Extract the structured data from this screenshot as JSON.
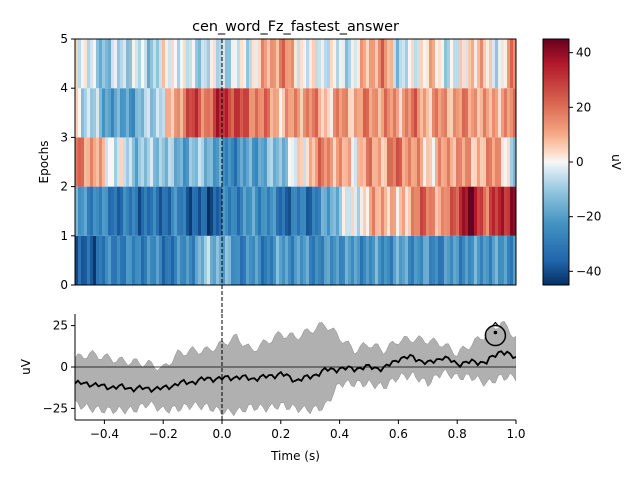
{
  "chart_data": [
    {
      "type": "heatmap",
      "title": "cen_word_Fz_fastest_answer",
      "xlabel": "",
      "ylabel": "Epochs",
      "xlim": [
        -0.5,
        1.0
      ],
      "ylim": [
        0,
        5
      ],
      "yticks": [
        "0",
        "1",
        "2",
        "3",
        "4",
        "5"
      ],
      "event_line_x": 0.0,
      "colorscale": "RdBu_r",
      "rows": [
        {
          "name": "epoch 1",
          "y": [
            0,
            1
          ],
          "t": [
            -0.5,
            -0.45,
            -0.4,
            -0.35,
            -0.3,
            -0.25,
            -0.2,
            -0.15,
            -0.1,
            -0.05,
            0.0,
            0.05,
            0.1,
            0.15,
            0.2,
            0.25,
            0.3,
            0.35,
            0.4,
            0.45,
            0.5,
            0.55,
            0.6,
            0.65,
            0.7,
            0.75,
            0.8,
            0.85,
            0.9,
            0.95,
            1.0
          ],
          "values": [
            -42,
            -36,
            -30,
            -26,
            -28,
            -24,
            -30,
            -28,
            -22,
            -12,
            -14,
            -26,
            -24,
            -28,
            -20,
            -22,
            -24,
            -26,
            -20,
            -24,
            -22,
            -24,
            -20,
            -22,
            -24,
            -26,
            -22,
            -24,
            -20,
            -24,
            -22
          ]
        },
        {
          "name": "epoch 2",
          "y": [
            1,
            2
          ],
          "t": [
            -0.5,
            -0.45,
            -0.4,
            -0.35,
            -0.3,
            -0.25,
            -0.2,
            -0.15,
            -0.1,
            -0.05,
            0.0,
            0.05,
            0.1,
            0.15,
            0.2,
            0.25,
            0.3,
            0.35,
            0.4,
            0.45,
            0.5,
            0.55,
            0.6,
            0.65,
            0.7,
            0.75,
            0.8,
            0.85,
            0.9,
            0.95,
            1.0
          ],
          "values": [
            -22,
            -24,
            -28,
            -32,
            -30,
            -34,
            -32,
            -28,
            -36,
            -40,
            -30,
            -26,
            -24,
            -22,
            -34,
            -30,
            -32,
            -22,
            -8,
            -2,
            6,
            14,
            2,
            16,
            22,
            8,
            30,
            44,
            20,
            34,
            40
          ]
        },
        {
          "name": "epoch 3",
          "y": [
            2,
            3
          ],
          "t": [
            -0.5,
            -0.45,
            -0.4,
            -0.35,
            -0.3,
            -0.25,
            -0.2,
            -0.15,
            -0.1,
            -0.05,
            0.0,
            0.05,
            0.1,
            0.15,
            0.2,
            0.25,
            0.3,
            0.35,
            0.4,
            0.45,
            0.5,
            0.55,
            0.6,
            0.65,
            0.7,
            0.75,
            0.8,
            0.85,
            0.9,
            0.95,
            1.0
          ],
          "values": [
            22,
            14,
            4,
            -4,
            -10,
            -12,
            -8,
            -18,
            -14,
            -10,
            -26,
            -24,
            -20,
            -16,
            -12,
            -2,
            8,
            18,
            10,
            4,
            14,
            10,
            22,
            12,
            6,
            10,
            16,
            8,
            12,
            14,
            -18
          ]
        },
        {
          "name": "epoch 4",
          "y": [
            3,
            4
          ],
          "t": [
            -0.5,
            -0.45,
            -0.4,
            -0.35,
            -0.3,
            -0.25,
            -0.2,
            -0.15,
            -0.1,
            -0.05,
            0.0,
            0.05,
            0.1,
            0.15,
            0.2,
            0.25,
            0.3,
            0.35,
            0.4,
            0.45,
            0.5,
            0.55,
            0.6,
            0.65,
            0.7,
            0.75,
            0.8,
            0.85,
            0.9,
            0.95,
            1.0
          ],
          "values": [
            2,
            -8,
            -16,
            -22,
            -18,
            -10,
            -2,
            14,
            28,
            18,
            34,
            28,
            20,
            16,
            8,
            12,
            18,
            6,
            14,
            10,
            16,
            14,
            12,
            18,
            10,
            14,
            12,
            16,
            8,
            14,
            12
          ]
        },
        {
          "name": "epoch 5",
          "y": [
            4,
            5
          ],
          "t": [
            -0.5,
            -0.45,
            -0.4,
            -0.35,
            -0.3,
            -0.25,
            -0.2,
            -0.15,
            -0.1,
            -0.05,
            0.0,
            0.05,
            0.1,
            0.15,
            0.2,
            0.25,
            0.3,
            0.35,
            0.4,
            0.45,
            0.5,
            0.55,
            0.6,
            0.65,
            0.7,
            0.75,
            0.8,
            0.85,
            0.9,
            0.95,
            1.0
          ],
          "values": [
            8,
            -6,
            -12,
            -8,
            -4,
            -10,
            -2,
            2,
            -8,
            -4,
            -6,
            -4,
            -2,
            10,
            18,
            6,
            -4,
            0,
            -6,
            -2,
            12,
            16,
            -8,
            -4,
            8,
            -2,
            -6,
            10,
            4,
            -4,
            22
          ]
        }
      ]
    },
    {
      "type": "colorbar",
      "label": "uV",
      "range": [
        -45,
        45
      ],
      "ticks": [
        {
          "value": 40,
          "label": "40"
        },
        {
          "value": 20,
          "label": "20"
        },
        {
          "value": 0,
          "label": "0"
        },
        {
          "value": -20,
          "label": "−20"
        },
        {
          "value": -40,
          "label": "−40"
        }
      ]
    },
    {
      "type": "line",
      "xlabel": "Time (s)",
      "ylabel": "uV",
      "xlim": [
        -0.5,
        1.0
      ],
      "ylim": [
        -32,
        32
      ],
      "xticks": [
        {
          "value": -0.4,
          "label": "−0.4"
        },
        {
          "value": -0.2,
          "label": "−0.2"
        },
        {
          "value": 0.0,
          "label": "0.0"
        },
        {
          "value": 0.2,
          "label": "0.2"
        },
        {
          "value": 0.4,
          "label": "0.4"
        },
        {
          "value": 0.6,
          "label": "0.6"
        },
        {
          "value": 0.8,
          "label": "0.8"
        },
        {
          "value": 1.0,
          "label": "1.0"
        }
      ],
      "yticks": [
        {
          "value": 25,
          "label": "25"
        },
        {
          "value": 0,
          "label": "0"
        },
        {
          "value": -25,
          "label": "−25"
        }
      ],
      "event_line_x": 0.0,
      "zero_line_y": 0,
      "series": [
        {
          "x": [
            -0.5,
            -0.45,
            -0.4,
            -0.35,
            -0.3,
            -0.25,
            -0.2,
            -0.15,
            -0.1,
            -0.05,
            0.0,
            0.05,
            0.1,
            0.15,
            0.2,
            0.25,
            0.3,
            0.35,
            0.4,
            0.45,
            0.5,
            0.55,
            0.6,
            0.65,
            0.7,
            0.75,
            0.8,
            0.85,
            0.9,
            0.95,
            1.0
          ],
          "y": [
            -10,
            -10,
            -12,
            -12,
            -13,
            -13,
            -13,
            -10,
            -9,
            -7,
            -7,
            -6,
            -7,
            -6,
            -4,
            -8,
            -6,
            -2,
            -1,
            -1,
            0,
            -1,
            5,
            6,
            2,
            6,
            2,
            3,
            3,
            10,
            5
          ]
        }
      ],
      "band": {
        "x": [
          -0.5,
          -0.45,
          -0.4,
          -0.35,
          -0.3,
          -0.25,
          -0.2,
          -0.15,
          -0.1,
          -0.05,
          0.0,
          0.05,
          0.1,
          0.15,
          0.2,
          0.25,
          0.3,
          0.35,
          0.4,
          0.45,
          0.5,
          0.55,
          0.6,
          0.65,
          0.7,
          0.75,
          0.8,
          0.85,
          0.9,
          0.95,
          1.0
        ],
        "upper": [
          5,
          8,
          6,
          4,
          3,
          2,
          -1,
          8,
          10,
          10,
          14,
          18,
          10,
          15,
          20,
          18,
          22,
          26,
          18,
          10,
          14,
          10,
          16,
          17,
          16,
          14,
          8,
          14,
          20,
          27,
          18
        ],
        "lower": [
          -22,
          -25,
          -26,
          -26,
          -26,
          -22,
          -26,
          -25,
          -23,
          -24,
          -27,
          -27,
          -24,
          -25,
          -23,
          -25,
          -26,
          -24,
          -10,
          -10,
          -10,
          -12,
          -6,
          -5,
          -10,
          -3,
          -6,
          -6,
          -10,
          -6,
          -6
        ]
      },
      "sensor_inset": {
        "x": 0.93,
        "y": 19
      }
    }
  ]
}
